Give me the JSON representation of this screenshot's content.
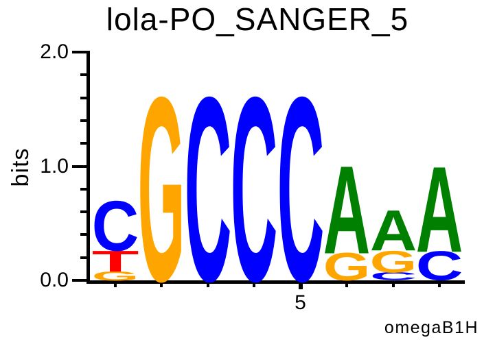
{
  "title": "lola-PO_SANGER_5",
  "credit": "omegaB1H",
  "axes": {
    "y_label": "bits",
    "y_major_ticks": [
      {
        "value": 2.0,
        "label": "2.0"
      },
      {
        "value": 1.0,
        "label": "1.0"
      },
      {
        "value": 0.0,
        "label": "0.0"
      }
    ],
    "y_minor_tick_values": [
      1.8,
      1.6,
      1.4,
      1.2,
      0.8,
      0.6,
      0.4,
      0.2
    ],
    "x_tick_label": "5"
  },
  "chart_data": {
    "type": "sequence-logo",
    "title": "lola-PO_SANGER_5",
    "xlabel": "",
    "ylabel": "bits",
    "ylim": [
      0,
      2.0
    ],
    "n_positions": 8,
    "labeled_x_tick": {
      "position": 5,
      "label": "5"
    },
    "consensus": "NGCCCAAA",
    "stacks": [
      {
        "position": 1,
        "letters": [
          {
            "letter": "G",
            "bits": 0.08
          },
          {
            "letter": "T",
            "bits": 0.18
          },
          {
            "letter": "C",
            "bits": 0.43
          }
        ]
      },
      {
        "position": 2,
        "letters": [
          {
            "letter": "G",
            "bits": 1.59
          }
        ]
      },
      {
        "position": 3,
        "letters": [
          {
            "letter": "C",
            "bits": 1.59
          }
        ]
      },
      {
        "position": 4,
        "letters": [
          {
            "letter": "C",
            "bits": 1.59
          }
        ]
      },
      {
        "position": 5,
        "letters": [
          {
            "letter": "C",
            "bits": 1.59
          }
        ]
      },
      {
        "position": 6,
        "letters": [
          {
            "letter": "G",
            "bits": 0.24
          },
          {
            "letter": "A",
            "bits": 0.76
          }
        ]
      },
      {
        "position": 7,
        "letters": [
          {
            "letter": "C",
            "bits": 0.07
          },
          {
            "letter": "G",
            "bits": 0.19
          },
          {
            "letter": "A",
            "bits": 0.35
          }
        ]
      },
      {
        "position": 8,
        "letters": [
          {
            "letter": "C",
            "bits": 0.25
          },
          {
            "letter": "A",
            "bits": 0.74
          }
        ]
      }
    ],
    "colors": {
      "A": "#008000",
      "C": "#0000ff",
      "G": "#ffa500",
      "T": "#ff0000"
    }
  }
}
